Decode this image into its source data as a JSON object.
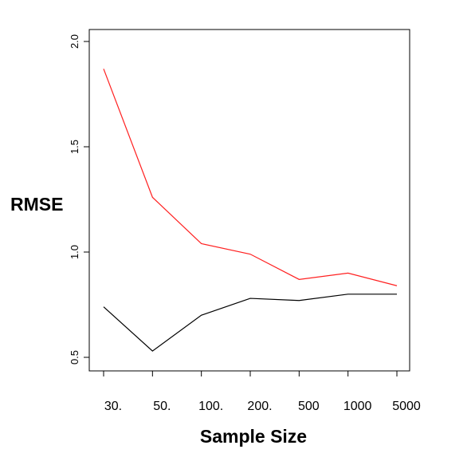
{
  "chart_data": {
    "type": "line",
    "title": "",
    "xlabel": "Sample Size",
    "ylabel": "RMSE",
    "categories": [
      "30.",
      "50.",
      "100.",
      "200.",
      "500",
      "1000",
      "5000"
    ],
    "ylim": [
      0.5,
      2.0
    ],
    "yticks": [
      "0.5",
      "1.0",
      "1.5",
      "2.0"
    ],
    "grid": false,
    "series": [
      {
        "color": "#ff2020",
        "values": [
          1.87,
          1.26,
          1.04,
          0.99,
          0.87,
          0.9,
          0.84
        ]
      },
      {
        "color": "#000000",
        "values": [
          0.74,
          0.53,
          0.7,
          0.78,
          0.77,
          0.8,
          0.8
        ]
      }
    ]
  }
}
